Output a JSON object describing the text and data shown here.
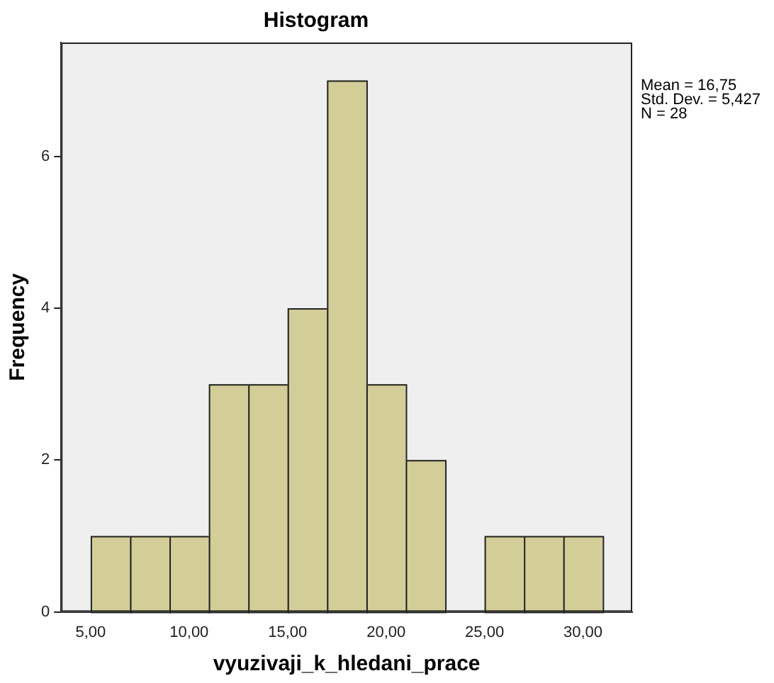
{
  "chart_data": {
    "type": "histogram",
    "title": "Histogram",
    "xlabel": "vyuzivaji_k_hledani_prace",
    "ylabel": "Frequency",
    "bins": [
      5,
      7,
      9,
      11,
      13,
      15,
      17,
      19,
      21,
      23,
      25,
      27,
      29,
      31
    ],
    "values": [
      1,
      1,
      1,
      3,
      3,
      4,
      7,
      3,
      2,
      0,
      1,
      1,
      1
    ],
    "color": "#d3ce98",
    "xlim": [
      3.5,
      32.5
    ],
    "xticks": [
      {
        "value": 5,
        "label": "5,00"
      },
      {
        "value": 10,
        "label": "10,00"
      },
      {
        "value": 15,
        "label": "15,00"
      },
      {
        "value": 20,
        "label": "20,00"
      },
      {
        "value": 25,
        "label": "25,00"
      },
      {
        "value": 30,
        "label": "30,00"
      }
    ],
    "ylim": [
      0,
      7.5
    ],
    "yticks": [
      0,
      2,
      4,
      6
    ],
    "grid": false,
    "legend": false,
    "annotations": [
      "Mean = 16,75",
      "Std. Dev. = 5,427",
      "N = 28"
    ]
  }
}
